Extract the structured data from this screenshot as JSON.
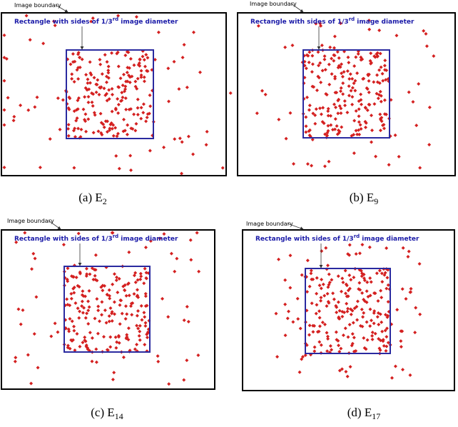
{
  "panels": [
    {
      "boundary_label": "Image boundary",
      "rect_label": "Rectangle with sides of 1/3",
      "rect_label_sup": "rd",
      "rect_label_end": " image diameter",
      "caption": "(a)  E",
      "caption_sub": "2"
    },
    {
      "boundary_label": "Image boundary",
      "rect_label": "Rectangle with sides of 1/3",
      "rect_label_sup": "rd",
      "rect_label_end": " image diameter",
      "caption": "(b) E",
      "caption_sub": "9"
    },
    {
      "boundary_label": "Image boundary",
      "rect_label": "Rectangle with sides of 1/3",
      "rect_label_sup": "rd",
      "rect_label_end": " image diameter",
      "caption": "(c) E",
      "caption_sub": "14"
    },
    {
      "boundary_label": "Image boundary",
      "rect_label": "Rectangle with sides of 1/3",
      "rect_label_sup": "rd",
      "rect_label_end": " image diameter",
      "caption": "(d) E",
      "caption_sub": "17"
    }
  ]
}
